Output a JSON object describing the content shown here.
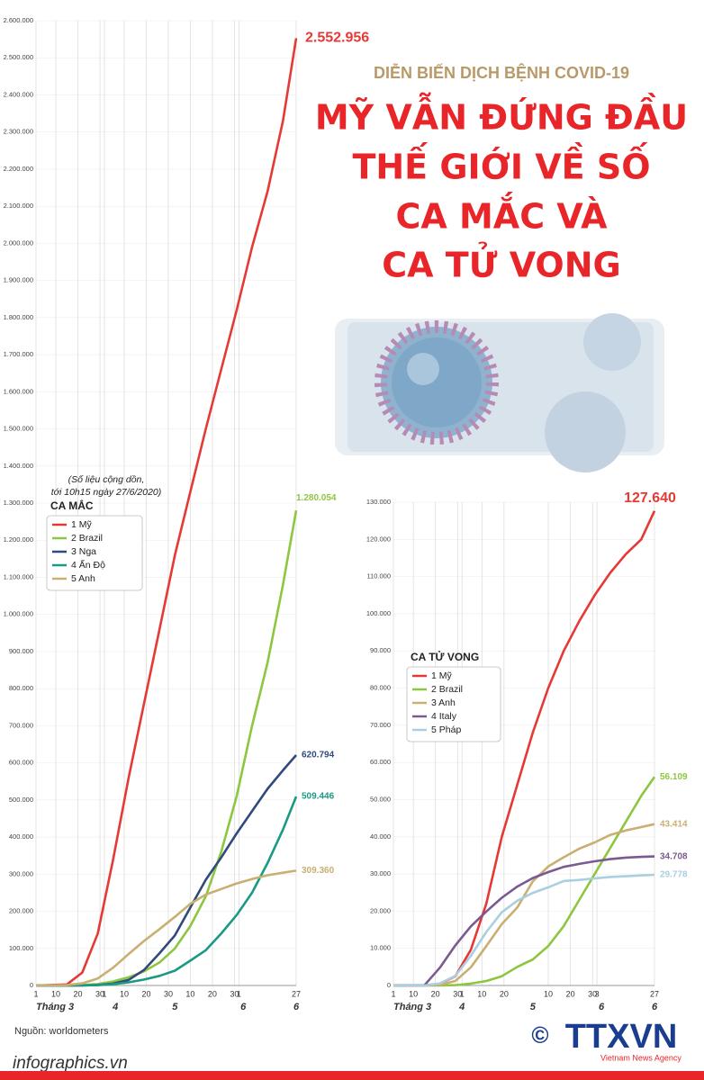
{
  "header": {
    "subtitle": "DIỄN BIẾN DỊCH BỆNH COVID-19",
    "headline": [
      "MỸ VẪN ĐỨNG ĐẦU",
      "THẾ GIỚI VỀ SỐ",
      "CA MẮC VÀ",
      "CA TỬ VONG"
    ]
  },
  "source": "Nguồn: worldometers",
  "site": "infographics.vn",
  "logo": {
    "mark": "©",
    "name": "TTXVN",
    "tagline": "Vietnam News Agency"
  },
  "chart_data": [
    {
      "type": "line",
      "legend_title": "CA MẮC",
      "annotation": [
        "(Số liệu cộng dồn,",
        "tới 10h15 ngày 27/6/2020)"
      ],
      "x": [
        0,
        14,
        21,
        28,
        35,
        42,
        49,
        56,
        63,
        70,
        77,
        84,
        91,
        98,
        105,
        112,
        118
      ],
      "xlim": [
        0,
        118
      ],
      "xticks": [
        {
          "value": 0,
          "label": "1"
        },
        {
          "value": 9,
          "label": "10"
        },
        {
          "value": 19,
          "label": "20"
        },
        {
          "value": 29,
          "label": "30"
        },
        {
          "value": 31,
          "label": "1"
        },
        {
          "value": 40,
          "label": "10"
        },
        {
          "value": 50,
          "label": "20"
        },
        {
          "value": 60,
          "label": "30"
        },
        {
          "value": 70,
          "label": "10"
        },
        {
          "value": 80,
          "label": "20"
        },
        {
          "value": 90,
          "label": "30"
        },
        {
          "value": 92,
          "label": "1"
        },
        {
          "value": 118,
          "label": "27"
        }
      ],
      "month_labels": [
        {
          "value": 0,
          "label": "Tháng 3"
        },
        {
          "value": 36,
          "label": "4"
        },
        {
          "value": 63,
          "label": "5"
        },
        {
          "value": 94,
          "label": "6"
        },
        {
          "value": 118,
          "label": "6"
        }
      ],
      "ylim": [
        0,
        2600000
      ],
      "yticks": [
        0,
        {
          "value": 100000,
          "label": "100.000"
        },
        {
          "value": 200000,
          "label": "200.000"
        },
        {
          "value": 300000,
          "label": "300.000"
        },
        {
          "value": 400000,
          "label": "400.000"
        },
        {
          "value": 500000,
          "label": "500.000"
        },
        {
          "value": 600000,
          "label": "600.000"
        },
        {
          "value": 700000,
          "label": "700.000"
        },
        {
          "value": 800000,
          "label": "800.000"
        },
        {
          "value": 900000,
          "label": "900.000"
        },
        {
          "value": 1000000,
          "label": "1.000.000"
        },
        {
          "value": 1100000,
          "label": "1.100.000"
        },
        {
          "value": 1200000,
          "label": "1.200.000"
        },
        {
          "value": 1300000,
          "label": "1.300.000"
        },
        {
          "value": 1400000,
          "label": "1.400.000"
        },
        {
          "value": 1500000,
          "label": "1.500.000"
        },
        {
          "value": 1600000,
          "label": "1.600.000"
        },
        {
          "value": 1700000,
          "label": "1.700.000"
        },
        {
          "value": 1800000,
          "label": "1.800.000"
        },
        {
          "value": 1900000,
          "label": "1.900.000"
        },
        {
          "value": 2000000,
          "label": "2.000.000"
        },
        {
          "value": 2100000,
          "label": "2.100.000"
        },
        {
          "value": 2200000,
          "label": "2.200.000"
        },
        {
          "value": 2300000,
          "label": "2.300.000"
        },
        {
          "value": 2400000,
          "label": "2.400.000"
        },
        {
          "value": 2500000,
          "label": "2.500.000"
        },
        {
          "value": 2600000,
          "label": "2.600.000"
        }
      ],
      "grid": true,
      "series": [
        {
          "name": "1 Mỹ",
          "color": "#e53935",
          "end_label": "2.552.956",
          "values": [
            0,
            3000,
            35000,
            140000,
            340000,
            560000,
            760000,
            960000,
            1160000,
            1330000,
            1500000,
            1660000,
            1820000,
            1990000,
            2140000,
            2330000,
            2552956
          ]
        },
        {
          "name": "2 Brazil",
          "color": "#8dc63f",
          "end_label": "1.280.054",
          "values": [
            0,
            0,
            1000,
            4000,
            11000,
            22000,
            38000,
            62000,
            100000,
            160000,
            240000,
            360000,
            510000,
            700000,
            870000,
            1080000,
            1280054
          ]
        },
        {
          "name": "3 Nga",
          "color": "#2f4b7c",
          "end_label": "620.794",
          "values": [
            0,
            0,
            300,
            1500,
            5000,
            15000,
            42000,
            87000,
            135000,
            210000,
            285000,
            345000,
            410000,
            470000,
            530000,
            580000,
            620794
          ]
        },
        {
          "name": "4 Ấn Độ",
          "color": "#1a9a84",
          "end_label": "509.446",
          "values": [
            0,
            0,
            400,
            1000,
            3500,
            8500,
            16000,
            26000,
            40000,
            67000,
            95000,
            140000,
            190000,
            250000,
            330000,
            420000,
            509446
          ]
        },
        {
          "name": "5 Anh",
          "color": "#c9b072",
          "end_label": "309.360",
          "values": [
            0,
            1000,
            5700,
            19000,
            48000,
            85000,
            120000,
            152000,
            185000,
            220000,
            245000,
            260000,
            275000,
            287000,
            297000,
            304000,
            309360
          ]
        }
      ]
    },
    {
      "type": "line",
      "legend_title": "CA TỬ VONG",
      "x": [
        0,
        14,
        21,
        28,
        35,
        42,
        49,
        56,
        63,
        70,
        77,
        84,
        91,
        98,
        105,
        112,
        118
      ],
      "xlim": [
        0,
        118
      ],
      "xticks": [
        {
          "value": 0,
          "label": "1"
        },
        {
          "value": 9,
          "label": "10"
        },
        {
          "value": 19,
          "label": "20"
        },
        {
          "value": 29,
          "label": "30"
        },
        {
          "value": 31,
          "label": "1"
        },
        {
          "value": 40,
          "label": "10"
        },
        {
          "value": 50,
          "label": "20"
        },
        {
          "value": 70,
          "label": "10"
        },
        {
          "value": 80,
          "label": "20"
        },
        {
          "value": 90,
          "label": "30"
        },
        {
          "value": 92,
          "label": "3"
        },
        {
          "value": 118,
          "label": "27"
        }
      ],
      "month_labels": [
        {
          "value": 0,
          "label": "Tháng 3"
        },
        {
          "value": 31,
          "label": "4"
        },
        {
          "value": 63,
          "label": "5"
        },
        {
          "value": 94,
          "label": "6"
        },
        {
          "value": 118,
          "label": "6"
        }
      ],
      "ylim": [
        0,
        130000
      ],
      "yticks": [
        0,
        {
          "value": 10000,
          "label": "10.000"
        },
        {
          "value": 20000,
          "label": "20.000"
        },
        {
          "value": 30000,
          "label": "30.000"
        },
        {
          "value": 40000,
          "label": "40.000"
        },
        {
          "value": 50000,
          "label": "50.000"
        },
        {
          "value": 60000,
          "label": "60.000"
        },
        {
          "value": 70000,
          "label": "70.000"
        },
        {
          "value": 80000,
          "label": "80.000"
        },
        {
          "value": 90000,
          "label": "90.000"
        },
        {
          "value": 100000,
          "label": "100.000"
        },
        {
          "value": 110000,
          "label": "110.000"
        },
        {
          "value": 120000,
          "label": "120.000"
        },
        {
          "value": 130000,
          "label": "130.000"
        }
      ],
      "grid": true,
      "series": [
        {
          "name": "1 Mỹ",
          "color": "#e53935",
          "end_label": "127.640",
          "values": [
            0,
            50,
            450,
            2500,
            9600,
            22000,
            40000,
            54000,
            68000,
            80000,
            90000,
            98000,
            105000,
            111000,
            116000,
            120000,
            127640
          ]
        },
        {
          "name": "2 Brazil",
          "color": "#8dc63f",
          "end_label": "56.109",
          "values": [
            0,
            0,
            0,
            100,
            500,
            1200,
            2500,
            5000,
            7000,
            10600,
            16000,
            23000,
            30000,
            37000,
            44000,
            51000,
            56109
          ]
        },
        {
          "name": "3 Anh",
          "color": "#c9b072",
          "end_label": "43.414",
          "values": [
            0,
            0,
            200,
            1200,
            4900,
            10600,
            16500,
            21000,
            28000,
            32000,
            34500,
            36800,
            38500,
            40500,
            41700,
            42600,
            43414
          ]
        },
        {
          "name": "4 Italy",
          "color": "#7b5a91",
          "end_label": "34.708",
          "values": [
            0,
            40,
            4800,
            10800,
            15900,
            19900,
            23600,
            26600,
            28900,
            30500,
            31900,
            32700,
            33400,
            34000,
            34400,
            34600,
            34708
          ]
        },
        {
          "name": "5 Pháp",
          "color": "#a9cfe0",
          "end_label": "29.778",
          "values": [
            0,
            2,
            560,
            2600,
            8000,
            14400,
            19700,
            22800,
            24900,
            26400,
            28100,
            28400,
            28800,
            29200,
            29400,
            29600,
            29778
          ]
        }
      ]
    }
  ]
}
